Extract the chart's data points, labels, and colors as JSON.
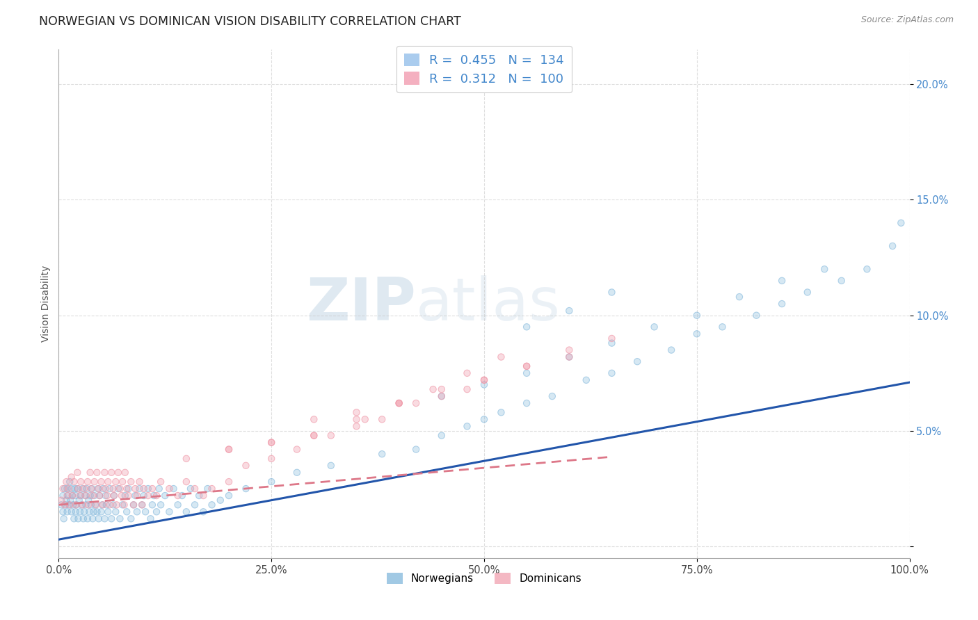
{
  "title": "NORWEGIAN VS DOMINICAN VISION DISABILITY CORRELATION CHART",
  "source": "Source: ZipAtlas.com",
  "ylabel": "Vision Disability",
  "legend_bottom": [
    "Norwegians",
    "Dominicans"
  ],
  "norwegian_color": "#7ab3d9",
  "dominican_color": "#f09aaa",
  "norwegian_line_color": "#2255aa",
  "dominican_line_color": "#dd7788",
  "background_color": "#ffffff",
  "grid_color": "#c8c8c8",
  "title_color": "#222222",
  "title_fontsize": 12.5,
  "axis_label_fontsize": 10,
  "tick_fontsize": 10.5,
  "source_fontsize": 9,
  "xlim": [
    0.0,
    1.0
  ],
  "ylim": [
    -0.005,
    0.215
  ],
  "norwegian_slope": 0.068,
  "norwegian_intercept": 0.003,
  "dominican_slope": 0.032,
  "dominican_intercept": 0.018,
  "dominican_line_xmax": 0.65,
  "nor_scatter_alpha": 0.55,
  "dom_scatter_alpha": 0.65,
  "scatter_size": 45,
  "norway_x": [
    0.003,
    0.005,
    0.005,
    0.006,
    0.007,
    0.008,
    0.009,
    0.01,
    0.01,
    0.011,
    0.012,
    0.013,
    0.014,
    0.015,
    0.015,
    0.016,
    0.017,
    0.018,
    0.019,
    0.02,
    0.02,
    0.021,
    0.022,
    0.023,
    0.024,
    0.025,
    0.026,
    0.027,
    0.028,
    0.029,
    0.03,
    0.031,
    0.032,
    0.033,
    0.034,
    0.035,
    0.036,
    0.037,
    0.038,
    0.039,
    0.04,
    0.041,
    0.042,
    0.043,
    0.045,
    0.046,
    0.047,
    0.048,
    0.05,
    0.051,
    0.052,
    0.054,
    0.055,
    0.056,
    0.058,
    0.06,
    0.062,
    0.064,
    0.065,
    0.067,
    0.07,
    0.072,
    0.075,
    0.078,
    0.08,
    0.082,
    0.085,
    0.088,
    0.09,
    0.092,
    0.095,
    0.098,
    0.1,
    0.102,
    0.105,
    0.108,
    0.11,
    0.112,
    0.115,
    0.118,
    0.12,
    0.125,
    0.13,
    0.135,
    0.14,
    0.145,
    0.15,
    0.155,
    0.16,
    0.165,
    0.17,
    0.175,
    0.18,
    0.19,
    0.2,
    0.22,
    0.25,
    0.28,
    0.32,
    0.38,
    0.42,
    0.45,
    0.48,
    0.5,
    0.52,
    0.55,
    0.58,
    0.62,
    0.65,
    0.68,
    0.72,
    0.75,
    0.78,
    0.82,
    0.85,
    0.88,
    0.92,
    0.95,
    0.98,
    0.99,
    0.45,
    0.5,
    0.55,
    0.6,
    0.65,
    0.7,
    0.75,
    0.8,
    0.85,
    0.9,
    0.55,
    0.6,
    0.65
  ],
  "norway_y": [
    0.018,
    0.015,
    0.022,
    0.012,
    0.025,
    0.018,
    0.02,
    0.015,
    0.025,
    0.022,
    0.018,
    0.028,
    0.02,
    0.015,
    0.025,
    0.022,
    0.018,
    0.012,
    0.025,
    0.015,
    0.022,
    0.018,
    0.025,
    0.012,
    0.02,
    0.015,
    0.022,
    0.018,
    0.025,
    0.012,
    0.015,
    0.022,
    0.018,
    0.025,
    0.012,
    0.02,
    0.015,
    0.022,
    0.018,
    0.025,
    0.012,
    0.015,
    0.022,
    0.018,
    0.015,
    0.025,
    0.012,
    0.022,
    0.015,
    0.018,
    0.025,
    0.012,
    0.022,
    0.018,
    0.015,
    0.025,
    0.012,
    0.018,
    0.022,
    0.015,
    0.025,
    0.012,
    0.018,
    0.022,
    0.015,
    0.025,
    0.012,
    0.018,
    0.022,
    0.015,
    0.025,
    0.018,
    0.022,
    0.015,
    0.025,
    0.012,
    0.018,
    0.022,
    0.015,
    0.025,
    0.018,
    0.022,
    0.015,
    0.025,
    0.018,
    0.022,
    0.015,
    0.025,
    0.018,
    0.022,
    0.015,
    0.025,
    0.018,
    0.02,
    0.022,
    0.025,
    0.028,
    0.032,
    0.035,
    0.04,
    0.042,
    0.048,
    0.052,
    0.055,
    0.058,
    0.062,
    0.065,
    0.072,
    0.075,
    0.08,
    0.085,
    0.092,
    0.095,
    0.1,
    0.105,
    0.11,
    0.115,
    0.12,
    0.13,
    0.14,
    0.065,
    0.07,
    0.075,
    0.082,
    0.088,
    0.095,
    0.1,
    0.108,
    0.115,
    0.12,
    0.095,
    0.102,
    0.11
  ],
  "dominican_x": [
    0.003,
    0.005,
    0.007,
    0.009,
    0.01,
    0.012,
    0.013,
    0.015,
    0.016,
    0.018,
    0.02,
    0.022,
    0.023,
    0.025,
    0.026,
    0.028,
    0.03,
    0.032,
    0.034,
    0.035,
    0.037,
    0.038,
    0.04,
    0.042,
    0.044,
    0.045,
    0.047,
    0.048,
    0.05,
    0.052,
    0.054,
    0.055,
    0.057,
    0.058,
    0.06,
    0.062,
    0.064,
    0.065,
    0.067,
    0.068,
    0.07,
    0.072,
    0.074,
    0.075,
    0.077,
    0.078,
    0.08,
    0.082,
    0.085,
    0.088,
    0.09,
    0.092,
    0.095,
    0.098,
    0.1,
    0.105,
    0.11,
    0.115,
    0.12,
    0.13,
    0.14,
    0.15,
    0.16,
    0.17,
    0.18,
    0.2,
    0.22,
    0.25,
    0.28,
    0.32,
    0.36,
    0.4,
    0.44,
    0.48,
    0.52,
    0.3,
    0.35,
    0.4,
    0.2,
    0.25,
    0.3,
    0.35,
    0.4,
    0.45,
    0.5,
    0.55,
    0.6,
    0.65,
    0.45,
    0.5,
    0.55,
    0.6,
    0.42,
    0.48,
    0.38,
    0.35,
    0.3,
    0.25,
    0.2,
    0.15
  ],
  "dominican_y": [
    0.02,
    0.025,
    0.018,
    0.028,
    0.022,
    0.025,
    0.018,
    0.03,
    0.022,
    0.028,
    0.018,
    0.032,
    0.025,
    0.022,
    0.028,
    0.018,
    0.025,
    0.022,
    0.028,
    0.018,
    0.032,
    0.025,
    0.022,
    0.028,
    0.018,
    0.032,
    0.025,
    0.022,
    0.028,
    0.018,
    0.032,
    0.025,
    0.022,
    0.028,
    0.018,
    0.032,
    0.025,
    0.022,
    0.028,
    0.018,
    0.032,
    0.025,
    0.022,
    0.028,
    0.018,
    0.032,
    0.025,
    0.022,
    0.028,
    0.018,
    0.025,
    0.022,
    0.028,
    0.018,
    0.025,
    0.022,
    0.025,
    0.022,
    0.028,
    0.025,
    0.022,
    0.028,
    0.025,
    0.022,
    0.025,
    0.028,
    0.035,
    0.038,
    0.042,
    0.048,
    0.055,
    0.062,
    0.068,
    0.075,
    0.082,
    0.055,
    0.058,
    0.062,
    0.042,
    0.045,
    0.048,
    0.055,
    0.062,
    0.065,
    0.072,
    0.078,
    0.085,
    0.09,
    0.068,
    0.072,
    0.078,
    0.082,
    0.062,
    0.068,
    0.055,
    0.052,
    0.048,
    0.045,
    0.042,
    0.038
  ]
}
